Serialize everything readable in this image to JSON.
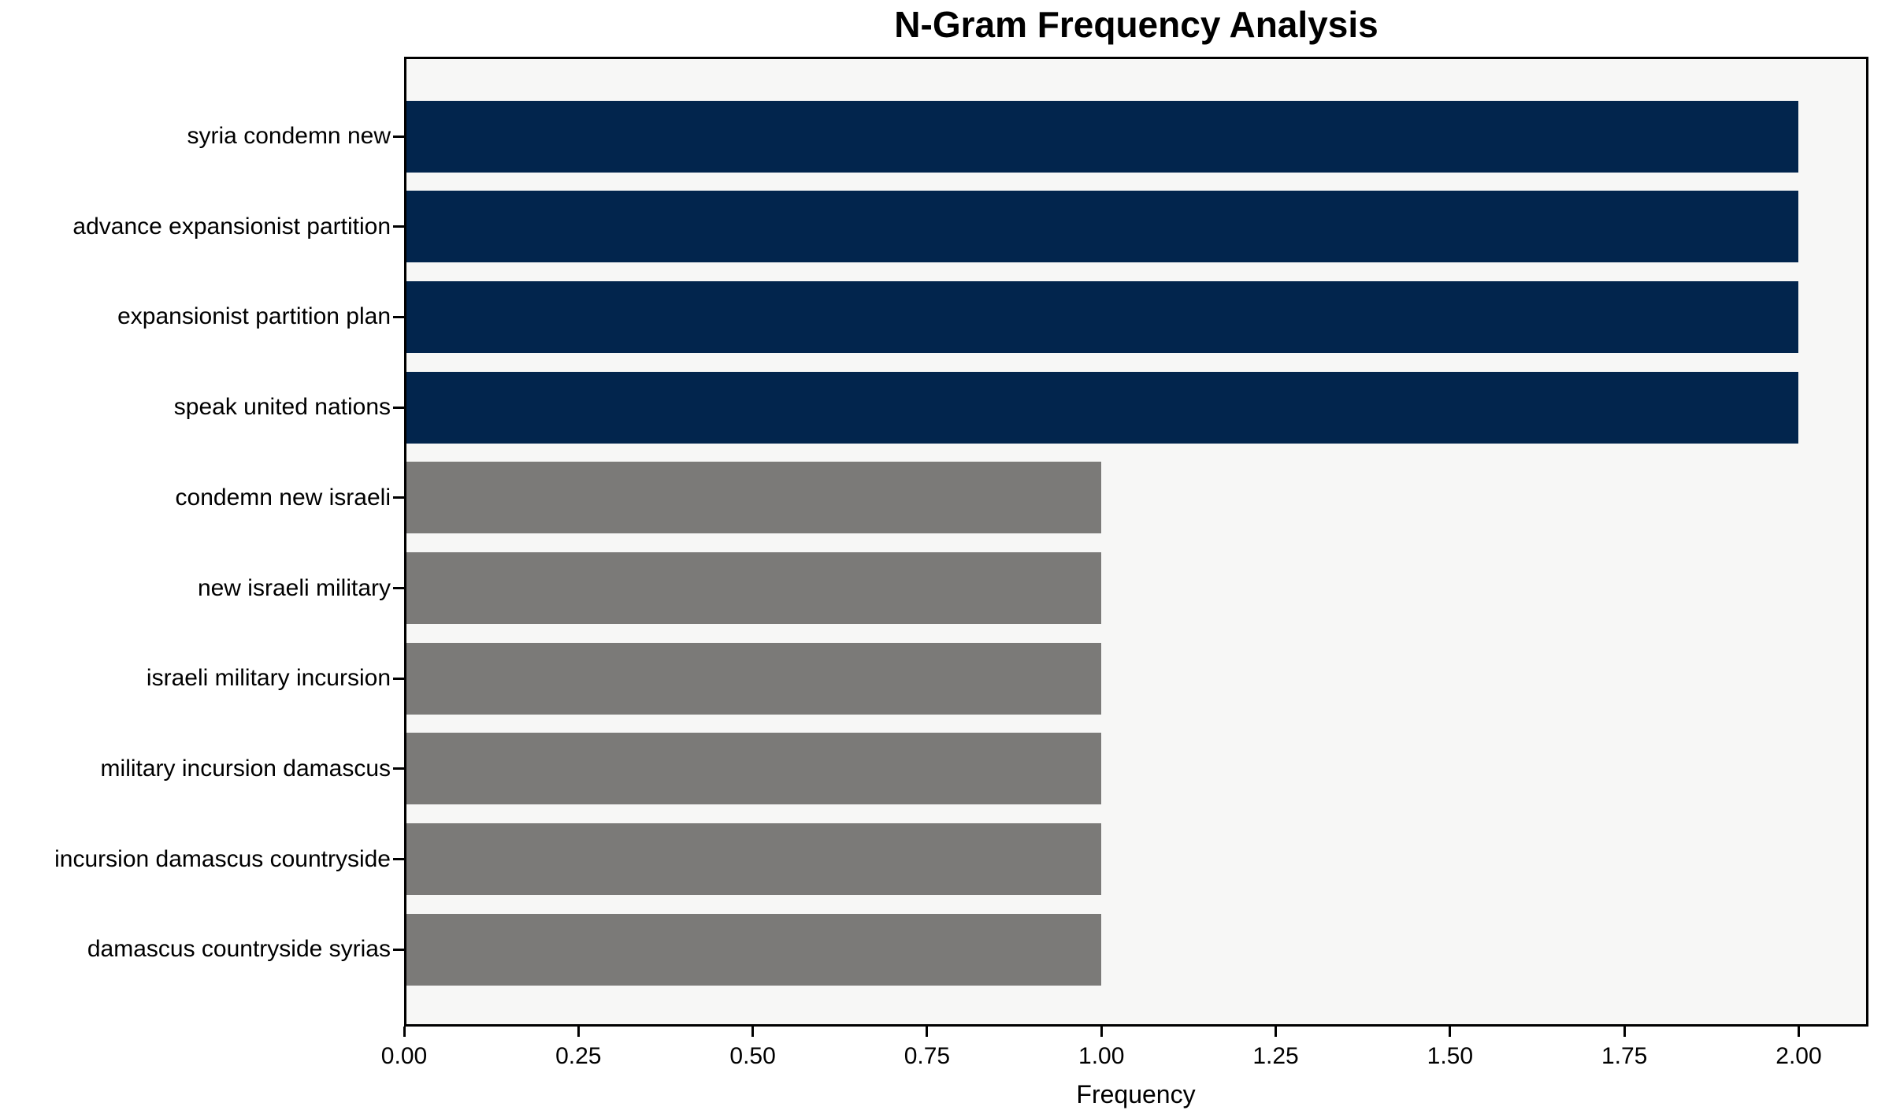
{
  "chart_data": {
    "type": "bar",
    "orientation": "horizontal",
    "title": "N-Gram Frequency Analysis",
    "xlabel": "Frequency",
    "ylabel": "",
    "categories": [
      "syria condemn new",
      "advance expansionist partition",
      "expansionist partition plan",
      "speak united nations",
      "condemn new israeli",
      "new israeli military",
      "israeli military incursion",
      "military incursion damascus",
      "incursion damascus countryside",
      "damascus countryside syrias"
    ],
    "values": [
      2,
      2,
      2,
      2,
      1,
      1,
      1,
      1,
      1,
      1
    ],
    "bar_colors": [
      "#02254d",
      "#02254d",
      "#02254d",
      "#02254d",
      "#7b7a78",
      "#7b7a78",
      "#7b7a78",
      "#7b7a78",
      "#7b7a78",
      "#7b7a78"
    ],
    "xlim": [
      0,
      2.1
    ],
    "xticks": [
      0,
      0.25,
      0.5,
      0.75,
      1.0,
      1.25,
      1.5,
      1.75,
      2.0
    ],
    "xtick_labels": [
      "0.00",
      "0.25",
      "0.50",
      "0.75",
      "1.00",
      "1.25",
      "1.50",
      "1.75",
      "2.00"
    ],
    "grid": false,
    "legend": null,
    "colors": {
      "highlight_bar": "#02254d",
      "normal_bar": "#7b7a78",
      "plot_background": "#f7f7f6",
      "figure_background": "#ffffff",
      "axis": "#000000",
      "text": "#000000"
    }
  }
}
